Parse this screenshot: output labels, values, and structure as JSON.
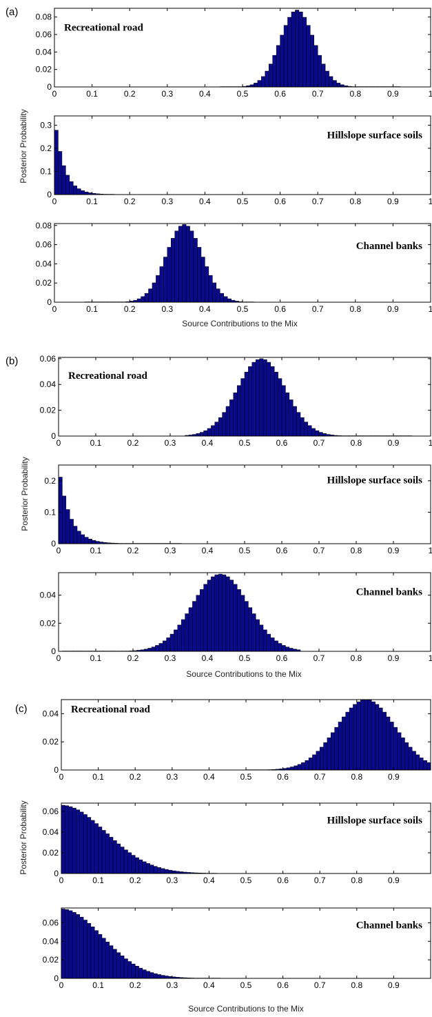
{
  "colors": {
    "bar_fill": "#0a0a8c",
    "bar_edge": "#000000",
    "frame": "#000000",
    "background": "#ffffff"
  },
  "figure": {
    "y_axis_title": "Posterior Probability",
    "x_axis_title": "Source Contributions to the Mix",
    "x_ticks_full": [
      "0",
      "0.1",
      "0.2",
      "0.3",
      "0.4",
      "0.5",
      "0.6",
      "0.7",
      "0.8",
      "0.9",
      "1"
    ],
    "x_ticks_c": [
      "0",
      "0.1",
      "0.2",
      "0.3",
      "0.4",
      "0.5",
      "0.6",
      "0.7",
      "0.8",
      "0.9"
    ]
  },
  "chart_data": [
    {
      "type": "bar",
      "panel": "(a)",
      "source": "Recreational road",
      "xlim": [
        0,
        1
      ],
      "ylim": [
        0,
        0.09
      ],
      "yticks": [
        "0",
        "0.02",
        "0.04",
        "0.06",
        "0.08"
      ],
      "dist": {
        "shape": "normal",
        "mean": 0.645,
        "sd": 0.045,
        "peak": 0.088,
        "min": 0.44,
        "max": 0.92
      }
    },
    {
      "type": "bar",
      "panel": "(a)",
      "source": "Hillslope surface soils",
      "xlim": [
        0,
        1
      ],
      "ylim": [
        0,
        0.34
      ],
      "yticks": [
        "0",
        "0.1",
        "0.2",
        "0.3"
      ],
      "dist": {
        "shape": "decay",
        "scale": 0.025,
        "peak": 0.34,
        "min": 0.0,
        "max": 0.16
      }
    },
    {
      "type": "bar",
      "panel": "(a)",
      "source": "Channel banks",
      "xlim": [
        0,
        1
      ],
      "ylim": [
        0,
        0.082
      ],
      "yticks": [
        "0",
        "0.02",
        "0.04",
        "0.06",
        "0.08"
      ],
      "dist": {
        "shape": "normal",
        "mean": 0.345,
        "sd": 0.048,
        "peak": 0.081,
        "min": 0.08,
        "max": 0.53
      }
    },
    {
      "type": "bar",
      "panel": "(b)",
      "source": "Recreational road",
      "xlim": [
        0,
        1
      ],
      "ylim": [
        0,
        0.061
      ],
      "yticks": [
        "0",
        "0.02",
        "0.04",
        "0.06"
      ],
      "dist": {
        "shape": "normal",
        "mean": 0.545,
        "sd": 0.065,
        "peak": 0.06,
        "min": 0.34,
        "max": 0.95
      }
    },
    {
      "type": "bar",
      "panel": "(b)",
      "source": "Hillslope surface soils",
      "xlim": [
        0,
        1
      ],
      "ylim": [
        0,
        0.25
      ],
      "yticks": [
        "0",
        "0.1",
        "0.2"
      ],
      "dist": {
        "shape": "decay",
        "scale": 0.03,
        "peak": 0.25,
        "min": 0.0,
        "max": 0.33
      }
    },
    {
      "type": "bar",
      "panel": "(b)",
      "source": "Channel banks",
      "xlim": [
        0,
        1
      ],
      "ylim": [
        0,
        0.056
      ],
      "yticks": [
        "0",
        "0.02",
        "0.04"
      ],
      "dist": {
        "shape": "normal",
        "mean": 0.435,
        "sd": 0.075,
        "peak": 0.055,
        "min": 0.01,
        "max": 0.65
      }
    },
    {
      "type": "bar",
      "panel": "(c)",
      "source": "Recreational road",
      "xlim": [
        0,
        1
      ],
      "ylim": [
        0,
        0.05
      ],
      "yticks": [
        "0",
        "0.02",
        "0.04"
      ],
      "dist": {
        "shape": "normal",
        "mean": 0.825,
        "sd": 0.08,
        "peak": 0.05,
        "min": 0.5,
        "max": 1.0
      }
    },
    {
      "type": "bar",
      "panel": "(c)",
      "source": "Hillslope surface soils",
      "xlim": [
        0,
        1
      ],
      "ylim": [
        0,
        0.068
      ],
      "yticks": [
        "0",
        "0.02",
        "0.04",
        "0.06"
      ],
      "dist": {
        "shape": "halfnormal",
        "sd": 0.12,
        "peak": 0.066,
        "min": 0.0,
        "max": 0.42
      }
    },
    {
      "type": "bar",
      "panel": "(c)",
      "source": "Channel banks",
      "xlim": [
        0,
        1
      ],
      "ylim": [
        0,
        0.076
      ],
      "yticks": [
        "0",
        "0.02",
        "0.04",
        "0.06"
      ],
      "dist": {
        "shape": "halfnormal",
        "sd": 0.11,
        "peak": 0.075,
        "min": 0.0,
        "max": 0.43
      }
    }
  ]
}
